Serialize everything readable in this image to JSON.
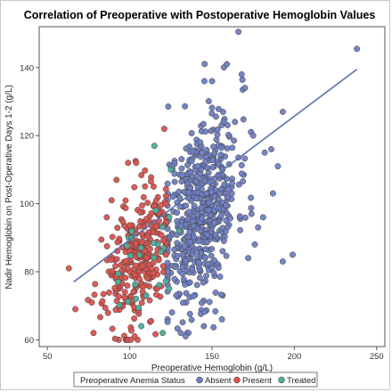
{
  "chart_data": {
    "type": "scatter",
    "title": "Correlation of Preoperative with Postoperative Hemoglobin Values",
    "xlabel": "Preoperative Hemoglobin (g/L)",
    "ylabel": "Nadir Hemoglobin on Post-Operative Days 1-2 (g/L)",
    "xlim": [
      45,
      255
    ],
    "ylim": [
      58,
      152
    ],
    "xticks": [
      50,
      100,
      150,
      200,
      250
    ],
    "yticks": [
      60,
      80,
      100,
      120,
      140
    ],
    "grid": false,
    "legend": {
      "title": "Preoperative Anemia Status",
      "position": "bottom",
      "entries": [
        "Absent",
        "Present",
        "Treated"
      ]
    },
    "colors": {
      "Absent": "#6f7ec0",
      "Present": "#d9534f",
      "Treated": "#4fae9b",
      "fit_line": "#5b6fae"
    },
    "fit_line": {
      "x": [
        66,
        238
      ],
      "y": [
        77,
        139.5
      ]
    },
    "series": [
      {
        "name": "Absent",
        "generator": {
          "n": 560,
          "x_range": [
            123,
            182
          ],
          "x_center": 143,
          "x_sd": 11,
          "y_intercept": 33.8,
          "y_slope": 0.45,
          "y_sd": 13.5,
          "y_range": [
            62,
            150
          ],
          "seed": 11
        },
        "extra_points": [
          [
            166,
            150.5
          ],
          [
            238,
            145.5
          ],
          [
            193,
            127
          ],
          [
            186,
            116
          ],
          [
            182,
            115
          ],
          [
            190,
            111
          ],
          [
            170,
            134
          ],
          [
            175,
            120
          ],
          [
            168,
            138
          ],
          [
            159,
            141
          ],
          [
            150,
            136
          ],
          [
            199,
            85
          ],
          [
            193,
            83
          ],
          [
            178,
            93
          ],
          [
            174,
            97
          ],
          [
            156,
            66
          ],
          [
            145,
            64
          ],
          [
            134,
            61
          ],
          [
            187,
            103
          ],
          [
            181,
            96
          ],
          [
            176,
            88
          ],
          [
            172,
            84
          ]
        ]
      },
      {
        "name": "Present",
        "generator": {
          "n": 300,
          "x_range": [
            70,
            122
          ],
          "x_center": 104,
          "x_sd": 10,
          "y_intercept": 45,
          "y_slope": 0.37,
          "y_sd": 9.5,
          "y_range": [
            60,
            117
          ],
          "seed": 23
        },
        "extra_points": [
          [
            63,
            81
          ],
          [
            67,
            69
          ],
          [
            78,
            62
          ],
          [
            103,
            61
          ],
          [
            99,
            112
          ],
          [
            104,
            112
          ],
          [
            121,
            122
          ],
          [
            89,
            101
          ],
          [
            92,
            107
          ],
          [
            86,
            96
          ]
        ]
      },
      {
        "name": "Treated",
        "generator": {
          "n": 24,
          "x_range": [
            92,
            124
          ],
          "x_center": 110,
          "x_sd": 8,
          "y_intercept": 40,
          "y_slope": 0.38,
          "y_sd": 7,
          "y_range": [
            62,
            117
          ],
          "seed": 37
        },
        "extra_points": [
          [
            115,
            117
          ],
          [
            125,
            110
          ],
          [
            110,
            73
          ],
          [
            93,
            77
          ],
          [
            107,
            64
          ],
          [
            120,
            62
          ],
          [
            116,
            98
          ],
          [
            130,
            92
          ]
        ]
      }
    ]
  }
}
